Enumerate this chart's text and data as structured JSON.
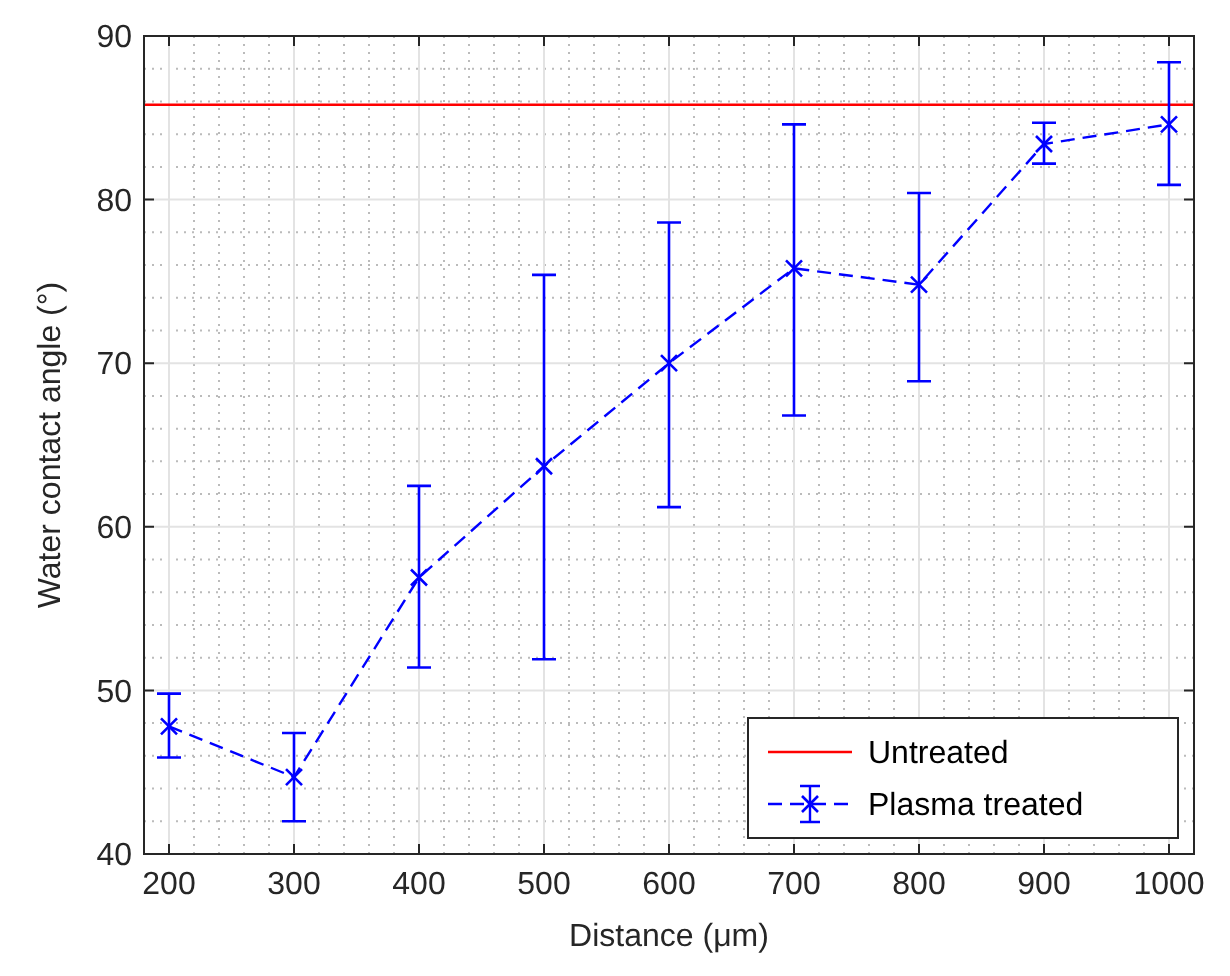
{
  "chart_data": {
    "type": "line",
    "xlabel": "Distance (μm)",
    "ylabel": "Water contact angle (°)",
    "x": [
      200,
      300,
      400,
      500,
      600,
      700,
      800,
      900,
      1000
    ],
    "series": [
      {
        "name": "Plasma treated",
        "color": "#0000ff",
        "values": [
          47.8,
          44.7,
          56.9,
          63.7,
          70.0,
          75.8,
          74.8,
          83.4,
          84.6
        ],
        "errors": [
          [
            45.9,
            49.8
          ],
          [
            42.0,
            47.4
          ],
          [
            51.4,
            62.5
          ],
          [
            51.9,
            75.4
          ],
          [
            61.2,
            78.6
          ],
          [
            66.8,
            84.6
          ],
          [
            68.9,
            80.4
          ],
          [
            82.2,
            84.7
          ],
          [
            80.9,
            88.4
          ]
        ],
        "marker": "cross",
        "line_style": "dashed"
      }
    ],
    "ref_lines": [
      {
        "axis": "y",
        "value": 85.8,
        "label": "Untreated",
        "color": "#ff0000",
        "line_style": "solid"
      }
    ],
    "xlim": [
      180,
      1020
    ],
    "xticks": [
      200,
      300,
      400,
      500,
      600,
      700,
      800,
      900,
      1000
    ],
    "ylim": [
      40,
      90
    ],
    "yticks": [
      40,
      50,
      60,
      70,
      80,
      90
    ],
    "grid": true,
    "legend": "bottom right"
  }
}
